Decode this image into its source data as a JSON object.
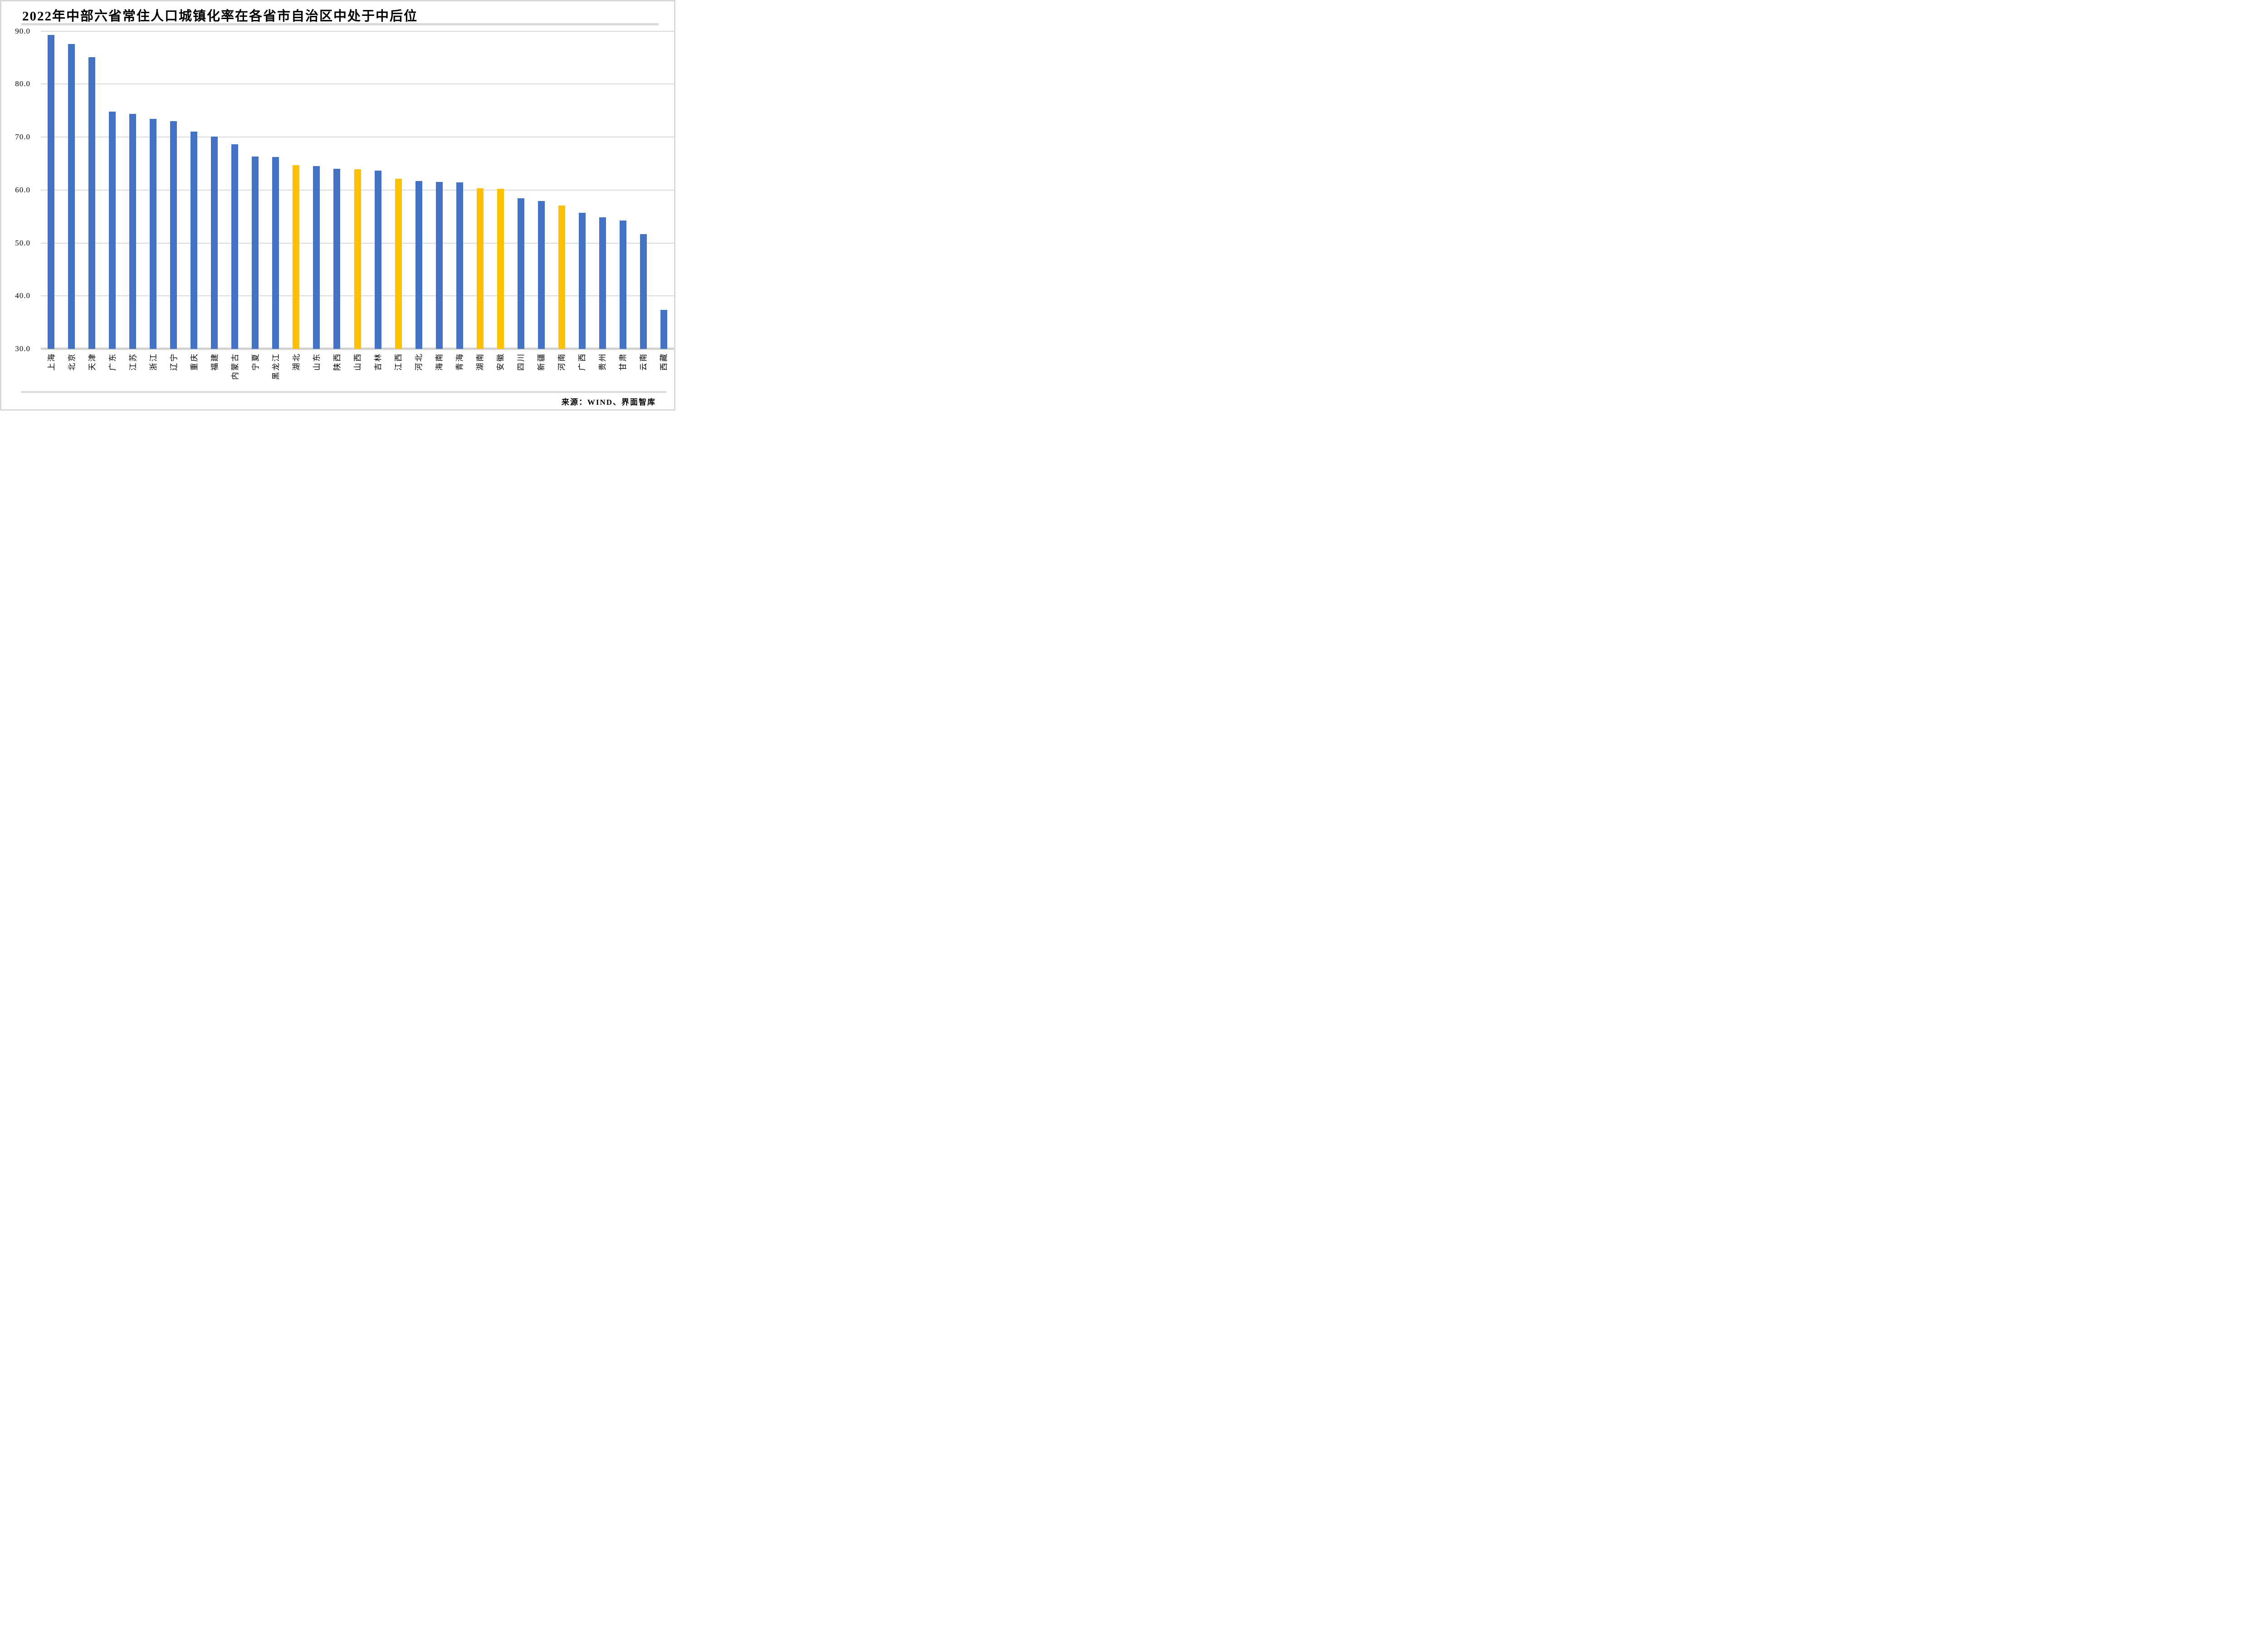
{
  "page": {
    "title": "2022年中部六省常住人口城镇化率在各省市自治区中处于中后位",
    "source": "来源：WIND、界面智库"
  },
  "colors": {
    "bar_primary": "#4472C4",
    "bar_highlight": "#FFC000",
    "gridline": "#D9D9D9",
    "baseline": "#D2D2D2",
    "frame": "#D9D9D9",
    "text": "#000000"
  },
  "chart_data": {
    "type": "bar",
    "title": "2022年中部六省常住人口城镇化率在各省市自治区中处于中后位",
    "xlabel": "",
    "ylabel": "",
    "unit": "%",
    "ylim": [
      30.0,
      90.0
    ],
    "ytick_step": 10,
    "ytick_labels": [
      "90.0",
      "80.0",
      "70.0",
      "60.0",
      "50.0",
      "40.0",
      "30.0"
    ],
    "grid": true,
    "legend_position": "none",
    "bar_color": "#4472C4",
    "highlight_color": "#FFC000",
    "highlighted_categories": [
      "湖北",
      "山西",
      "江西",
      "湖南",
      "安徽",
      "河南"
    ],
    "categories": [
      "上海",
      "北京",
      "天津",
      "广东",
      "江苏",
      "浙江",
      "辽宁",
      "重庆",
      "福建",
      "内蒙古",
      "宁夏",
      "黑龙江",
      "湖北",
      "山东",
      "陕西",
      "山西",
      "吉林",
      "江西",
      "河北",
      "海南",
      "青海",
      "湖南",
      "安徽",
      "四川",
      "新疆",
      "河南",
      "广西",
      "贵州",
      "甘肃",
      "云南",
      "西藏"
    ],
    "values": [
      89.3,
      87.6,
      85.1,
      74.8,
      74.4,
      73.4,
      73.0,
      71.0,
      70.1,
      68.6,
      66.3,
      66.2,
      64.7,
      64.5,
      64.0,
      63.9,
      63.7,
      62.1,
      61.7,
      61.5,
      61.4,
      60.3,
      60.2,
      58.4,
      57.9,
      57.1,
      55.7,
      54.8,
      54.2,
      51.7,
      37.4
    ],
    "source": "来源：WIND、界面智库"
  }
}
